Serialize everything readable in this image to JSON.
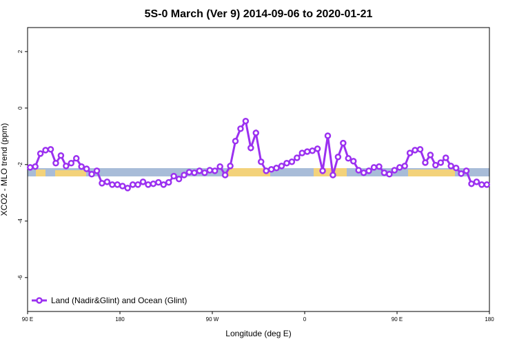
{
  "chart_data": {
    "type": "line",
    "title": "5S-0 March (Ver 9)   2014-09-06 to 2020-01-21",
    "x_label": "Longitude (deg E)",
    "y_label": "XCO2 - MLO trend (ppm)",
    "xlim": [
      90,
      540
    ],
    "ylim": [
      -7.2,
      2.85
    ],
    "xticks": [
      {
        "value": 90,
        "label": "90 E"
      },
      {
        "value": 180,
        "label": "180"
      },
      {
        "value": 270,
        "label": "90 W"
      },
      {
        "value": 360,
        "label": "0"
      },
      {
        "value": 450,
        "label": "90 E"
      },
      {
        "value": 540,
        "label": "180"
      }
    ],
    "yticks": [
      -6,
      -4,
      -2,
      0,
      2
    ],
    "legend": "bottom-left",
    "x": [
      92.5,
      97.5,
      102.5,
      107.5,
      112.5,
      117.5,
      122.5,
      127.5,
      132.5,
      137.5,
      142.5,
      147.5,
      152.5,
      157.5,
      162.5,
      167.5,
      172.5,
      177.5,
      182.5,
      187.5,
      192.5,
      197.5,
      202.5,
      207.5,
      212.5,
      217.5,
      222.5,
      227.5,
      232.5,
      237.5,
      242.5,
      247.5,
      252.5,
      257.5,
      262.5,
      267.5,
      272.5,
      277.5,
      282.5,
      287.5,
      292.5,
      297.5,
      302.5,
      307.5,
      312.5,
      317.5,
      322.5,
      327.5,
      332.5,
      337.5,
      342.5,
      347.5,
      352.5,
      357.5,
      362.5,
      367.5,
      372.5,
      377.5,
      382.5,
      387.5,
      392.5,
      397.5,
      402.5,
      407.5,
      412.5,
      417.5,
      422.5,
      427.5,
      432.5,
      437.5,
      442.5,
      447.5,
      452.5,
      457.5,
      462.5,
      467.5,
      472.5,
      477.5,
      482.5,
      487.5,
      492.5,
      497.5,
      502.5,
      507.5,
      512.5,
      517.5,
      522.5,
      527.5,
      532.5,
      537.5
    ],
    "series": [
      {
        "name": "Land (Nadir&Glint) and Ocean (Glint)",
        "color": "#9b30f0",
        "values": [
          -2.1,
          -2.07,
          -1.61,
          -1.49,
          -1.46,
          -1.95,
          -1.68,
          -2.05,
          -1.95,
          -1.78,
          -2.07,
          -2.15,
          -2.34,
          -2.22,
          -2.66,
          -2.61,
          -2.71,
          -2.71,
          -2.76,
          -2.83,
          -2.71,
          -2.71,
          -2.61,
          -2.71,
          -2.68,
          -2.63,
          -2.71,
          -2.63,
          -2.41,
          -2.51,
          -2.37,
          -2.27,
          -2.29,
          -2.22,
          -2.29,
          -2.2,
          -2.22,
          -2.07,
          -2.37,
          -2.05,
          -1.17,
          -0.73,
          -0.46,
          -1.41,
          -0.88,
          -1.9,
          -2.22,
          -2.17,
          -2.12,
          -2.05,
          -1.95,
          -1.9,
          -1.76,
          -1.59,
          -1.54,
          -1.51,
          -1.44,
          -2.22,
          -0.98,
          -2.37,
          -1.73,
          -1.24,
          -1.78,
          -1.88,
          -2.2,
          -2.29,
          -2.22,
          -2.1,
          -2.07,
          -2.29,
          -2.34,
          -2.2,
          -2.1,
          -2.05,
          -1.59,
          -1.49,
          -1.46,
          -1.93,
          -1.66,
          -2.02,
          -1.93,
          -1.76,
          -2.05,
          -2.12,
          -2.32,
          -2.22,
          -2.68,
          -2.61,
          -2.71,
          -2.71
        ]
      }
    ]
  }
}
